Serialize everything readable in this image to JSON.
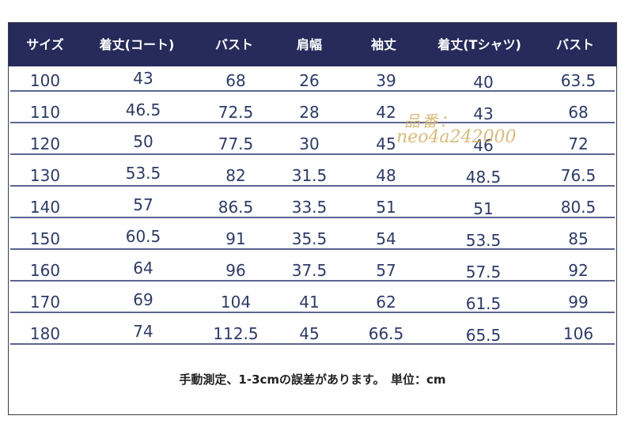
{
  "table": {
    "headers": [
      "サイズ",
      "着丈(コート)",
      "バスト",
      "肩幅",
      "袖丈",
      "着丈(Tシャツ)",
      "バスト"
    ],
    "rows": [
      [
        "100",
        "43",
        "68",
        "26",
        "39",
        "40",
        "63.5"
      ],
      [
        "110",
        "46.5",
        "72.5",
        "28",
        "42",
        "43",
        "68"
      ],
      [
        "120",
        "50",
        "77.5",
        "30",
        "45",
        "46",
        "72"
      ],
      [
        "130",
        "53.5",
        "82",
        "31.5",
        "48",
        "48.5",
        "76.5"
      ],
      [
        "140",
        "57",
        "86.5",
        "33.5",
        "51",
        "51",
        "80.5"
      ],
      [
        "150",
        "60.5",
        "91",
        "35.5",
        "54",
        "53.5",
        "85"
      ],
      [
        "160",
        "64",
        "96",
        "37.5",
        "57",
        "57.5",
        "92"
      ],
      [
        "170",
        "69",
        "104",
        "41",
        "62",
        "61.5",
        "99"
      ],
      [
        "180",
        "74",
        "112.5",
        "45",
        "66.5",
        "65.5",
        "106"
      ]
    ]
  },
  "note": "手動測定、1-3cmの誤差があります。　単位：cm",
  "watermark": {
    "line1": "品番：",
    "line2": "neo4a242000",
    "color": "#d9b46a"
  },
  "colors": {
    "header_bg": "#262b5c",
    "cell_text": "#2c3a6a",
    "separator": "#5c6592"
  }
}
